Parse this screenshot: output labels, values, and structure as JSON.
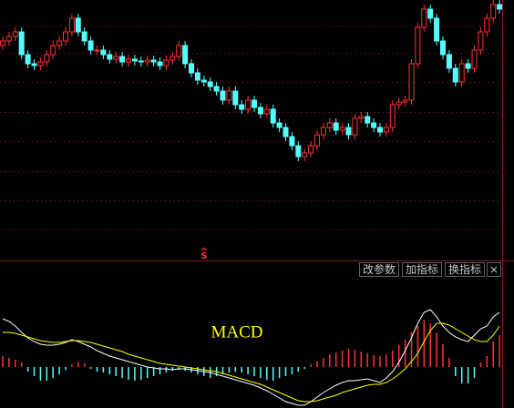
{
  "toolbar": {
    "buttons": [
      "改参数",
      "加指标",
      "换指标",
      "×"
    ]
  },
  "chart_data": [
    {
      "type": "candlestick",
      "ylim": [
        0,
        285
      ],
      "up_color": "#ff3232",
      "down_color": "#54ffff",
      "signal": {
        "label": "S",
        "index": 32,
        "color": "#ff3232"
      },
      "open": [
        235,
        240,
        245,
        250,
        225,
        215,
        213,
        217,
        225,
        235,
        240,
        250,
        265,
        250,
        240,
        230,
        230,
        225,
        220,
        223,
        217,
        220,
        218,
        217,
        219,
        217,
        213,
        219,
        223,
        235,
        215,
        205,
        197,
        195,
        190,
        185,
        175,
        185,
        170,
        165,
        175,
        167,
        160,
        165,
        150,
        145,
        135,
        125,
        113,
        117,
        125,
        137,
        145,
        150,
        142,
        145,
        137,
        155,
        157,
        150,
        145,
        140,
        145,
        170,
        173,
        175,
        215,
        255,
        275,
        265,
        240,
        225,
        210,
        195,
        215,
        210,
        230,
        250,
        265,
        280
      ],
      "high": [
        245,
        250,
        255,
        255,
        230,
        220,
        222,
        230,
        240,
        245,
        255,
        270,
        270,
        255,
        245,
        235,
        235,
        230,
        228,
        228,
        225,
        225,
        223,
        224,
        224,
        222,
        224,
        228,
        240,
        240,
        220,
        210,
        202,
        200,
        195,
        190,
        190,
        190,
        175,
        180,
        180,
        172,
        170,
        170,
        155,
        150,
        140,
        130,
        122,
        130,
        142,
        150,
        155,
        155,
        150,
        150,
        160,
        162,
        162,
        155,
        150,
        150,
        175,
        178,
        180,
        220,
        260,
        280,
        280,
        270,
        245,
        230,
        215,
        220,
        220,
        235,
        255,
        270,
        285,
        285
      ],
      "low": [
        230,
        235,
        240,
        220,
        210,
        208,
        208,
        212,
        220,
        230,
        235,
        245,
        245,
        235,
        225,
        225,
        220,
        215,
        215,
        212,
        212,
        213,
        212,
        212,
        212,
        208,
        208,
        214,
        218,
        210,
        200,
        192,
        190,
        185,
        180,
        170,
        170,
        165,
        160,
        160,
        162,
        155,
        155,
        145,
        140,
        130,
        120,
        108,
        108,
        112,
        120,
        132,
        140,
        137,
        137,
        132,
        132,
        150,
        145,
        140,
        135,
        135,
        140,
        165,
        168,
        170,
        210,
        250,
        260,
        235,
        220,
        205,
        190,
        190,
        205,
        205,
        225,
        245,
        260,
        270
      ],
      "close": [
        240,
        245,
        250,
        225,
        215,
        213,
        217,
        225,
        235,
        240,
        250,
        265,
        250,
        240,
        230,
        230,
        225,
        220,
        223,
        217,
        220,
        218,
        217,
        219,
        217,
        213,
        219,
        223,
        235,
        215,
        205,
        197,
        195,
        190,
        185,
        175,
        185,
        170,
        165,
        175,
        167,
        160,
        165,
        150,
        145,
        135,
        125,
        113,
        117,
        125,
        137,
        145,
        150,
        142,
        145,
        137,
        155,
        157,
        150,
        145,
        140,
        145,
        170,
        173,
        175,
        215,
        255,
        275,
        265,
        240,
        225,
        210,
        195,
        215,
        210,
        230,
        250,
        265,
        280,
        275
      ]
    },
    {
      "type": "macd",
      "title": "MACD",
      "ylim": [
        -45,
        98
      ],
      "up_color": "#ff3232",
      "down_color": "#54ffff",
      "histogram": [
        12,
        10,
        8,
        5,
        -5,
        -10,
        -15,
        -15,
        -12,
        -8,
        -3,
        3,
        6,
        4,
        -2,
        -5,
        -6,
        -8,
        -10,
        -12,
        -14,
        -15,
        -14,
        -12,
        -10,
        -8,
        -6,
        -4,
        -3,
        -4,
        -6,
        -8,
        -10,
        -12,
        -10,
        -8,
        -6,
        -5,
        -6,
        -8,
        -10,
        -12,
        -14,
        -15,
        -12,
        -10,
        -8,
        -5,
        -2,
        3,
        6,
        10,
        14,
        16,
        18,
        20,
        19,
        17,
        15,
        13,
        12,
        14,
        18,
        24,
        30,
        38,
        45,
        52,
        48,
        38,
        25,
        10,
        -10,
        -18,
        -18,
        -12,
        5,
        12,
        28,
        35
      ],
      "series": [
        {
          "color": "#ffffff",
          "values": [
            53,
            50,
            45,
            38,
            32,
            28,
            25,
            24,
            24,
            25,
            27,
            30,
            28,
            25,
            22,
            18,
            15,
            12,
            10,
            8,
            6,
            4,
            2,
            0,
            -1,
            -2,
            -2,
            -3,
            -2,
            -2,
            -3,
            -4,
            -5,
            -6,
            -8,
            -10,
            -12,
            -14,
            -16,
            -18,
            -20,
            -23,
            -26,
            -30,
            -34,
            -38,
            -40,
            -42,
            -42,
            -38,
            -33,
            -28,
            -24,
            -20,
            -17,
            -15,
            -15,
            -14,
            -13,
            -15,
            -17,
            -12,
            -5,
            5,
            18,
            32,
            48,
            60,
            63,
            55,
            45,
            38,
            33,
            30,
            28,
            35,
            42,
            45,
            55,
            60
          ]
        },
        {
          "color": "#ffff00",
          "values": [
            38,
            38,
            37,
            35,
            33,
            31,
            29,
            28,
            27,
            27,
            28,
            29,
            29,
            28,
            27,
            25,
            23,
            21,
            19,
            17,
            14,
            12,
            10,
            8,
            6,
            4,
            3,
            2,
            1,
            0,
            -1,
            -2,
            -3,
            -4,
            -5,
            -7,
            -9,
            -11,
            -13,
            -15,
            -17,
            -19,
            -22,
            -25,
            -28,
            -31,
            -34,
            -37,
            -38,
            -38,
            -37,
            -35,
            -33,
            -31,
            -28,
            -26,
            -24,
            -22,
            -20,
            -19,
            -19,
            -17,
            -13,
            -8,
            -2,
            6,
            15,
            28,
            40,
            48,
            48,
            46,
            42,
            38,
            34,
            30,
            28,
            28,
            35,
            45
          ]
        }
      ]
    }
  ]
}
